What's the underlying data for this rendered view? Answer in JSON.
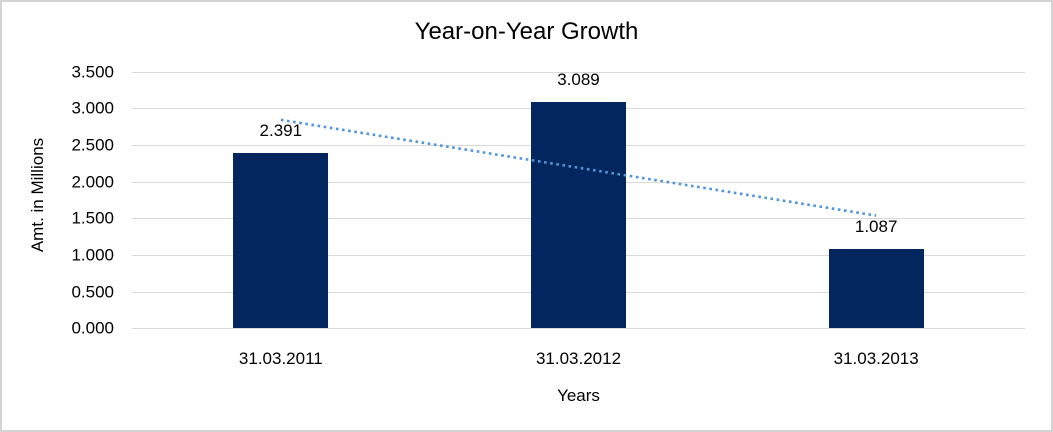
{
  "frame": {
    "background": "#ffffff",
    "border_color": "#d3d3d3"
  },
  "chart_data": {
    "type": "bar",
    "title": "Year-on-Year Growth",
    "xlabel": "Years",
    "ylabel": "Amt. in Millions",
    "categories": [
      "31.03.2011",
      "31.03.2012",
      "31.03.2013"
    ],
    "values": [
      2.391,
      3.089,
      1.087
    ],
    "data_labels": [
      "2.391",
      "3.089",
      "1.087"
    ],
    "ylim": [
      0,
      3.5
    ],
    "ytick_step": 0.5,
    "ytick_labels": [
      "0.000",
      "0.500",
      "1.000",
      "1.500",
      "2.000",
      "2.500",
      "3.000",
      "3.500"
    ],
    "grid": true,
    "legend": "none",
    "bar_color": "#04265e",
    "gridline_color": "#d9d9d9",
    "label_color": "#000000",
    "trendline": {
      "type": "linear",
      "style": "dotted",
      "color": "#4f95d8"
    }
  }
}
